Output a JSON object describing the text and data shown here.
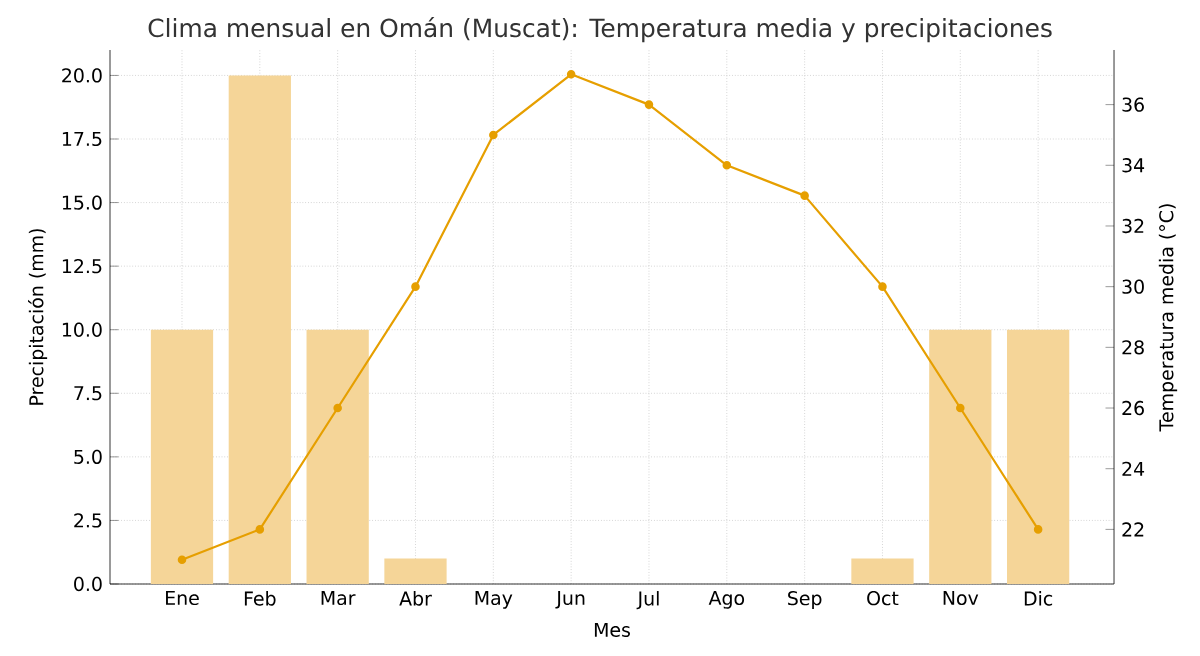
{
  "chart_data": {
    "type": "bar",
    "title": "Clima mensual en Omán (Muscat): Temperatura media y precipitaciones",
    "xlabel": "Mes",
    "ylabel": "Precipitación (mm)",
    "y2label": "Temperatura media (°C)",
    "categories": [
      "Ene",
      "Feb",
      "Mar",
      "Abr",
      "May",
      "Jun",
      "Jul",
      "Ago",
      "Sep",
      "Oct",
      "Nov",
      "Dic"
    ],
    "series": [
      {
        "color": "#f5d598",
        "values": [
          10,
          20,
          10,
          1,
          0,
          0,
          0,
          0,
          0,
          1,
          10,
          10
        ]
      },
      {
        "type": "line",
        "axis": "y2",
        "color": "#e69f00",
        "marker": "circle",
        "values": [
          21,
          22,
          26,
          30,
          35,
          37,
          36,
          34,
          33,
          30,
          26,
          22
        ]
      }
    ],
    "ylim": [
      0,
      21
    ],
    "yticks": [
      {
        "value": 0,
        "label": "0.0"
      },
      {
        "value": 2.5,
        "label": "2.5"
      },
      {
        "value": 5,
        "label": "5.0"
      },
      {
        "value": 7.5,
        "label": "7.5"
      },
      {
        "value": 10,
        "label": "10.0"
      },
      {
        "value": 12.5,
        "label": "12.5"
      },
      {
        "value": 15,
        "label": "15.0"
      },
      {
        "value": 17.5,
        "label": "17.5"
      },
      {
        "value": 20,
        "label": "20.0"
      }
    ],
    "y2lim": [
      20.2,
      37.8
    ],
    "y2ticks": [
      22,
      24,
      26,
      28,
      30,
      32,
      34,
      36
    ],
    "grid": true
  }
}
